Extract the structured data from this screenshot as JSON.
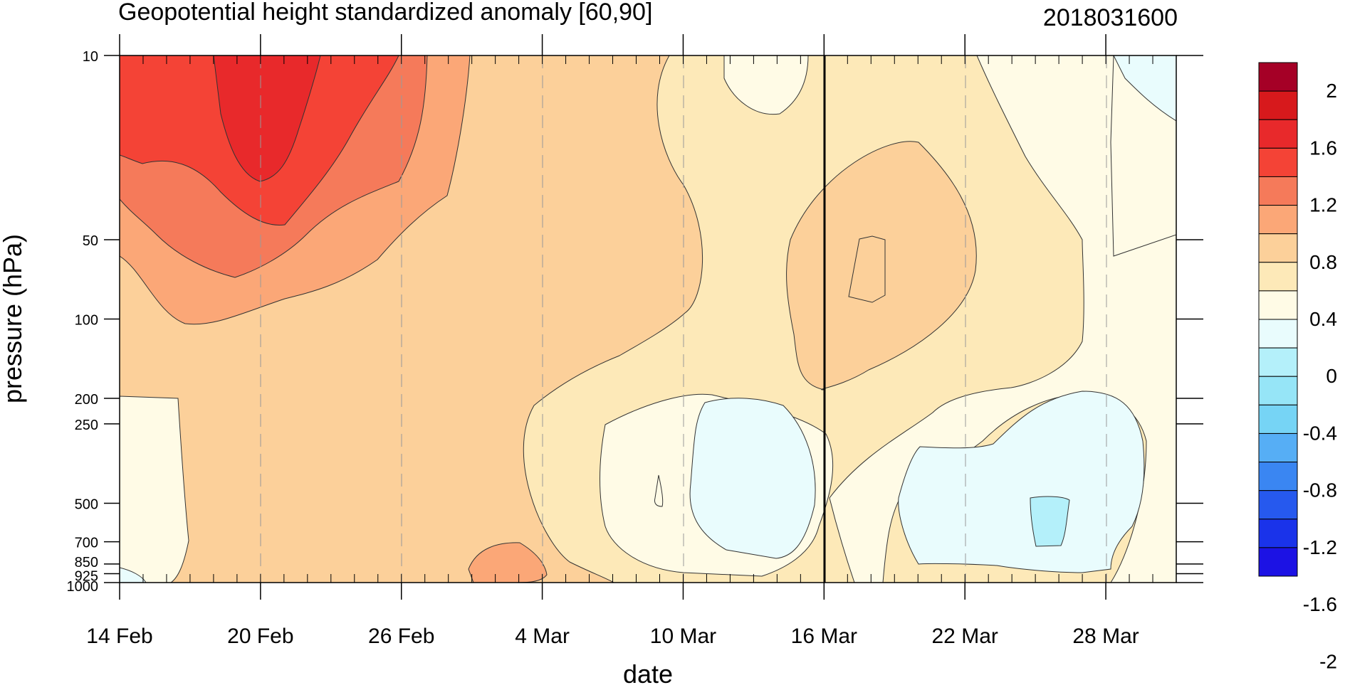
{
  "chart_data": {
    "type": "heatmap",
    "title": "Geopotential height standardized anomaly [60,90]",
    "stamp": "2018031600",
    "xlabel": "date",
    "ylabel": "pressure (hPa)",
    "x_range": [
      "2018-02-14",
      "2018-03-31"
    ],
    "x_ticks": [
      {
        "date": "2018-02-14",
        "label": "14 Feb"
      },
      {
        "date": "2018-02-20",
        "label": "20 Feb"
      },
      {
        "date": "2018-02-26",
        "label": "26 Feb"
      },
      {
        "date": "2018-03-04",
        "label": "4 Mar"
      },
      {
        "date": "2018-03-10",
        "label": "10 Mar"
      },
      {
        "date": "2018-03-16",
        "label": "16 Mar"
      },
      {
        "date": "2018-03-22",
        "label": "22 Mar"
      },
      {
        "date": "2018-03-28",
        "label": "28 Mar"
      }
    ],
    "y_scale": "log",
    "y_range": [
      1000,
      10
    ],
    "y_ticks": [
      {
        "p": 10,
        "label": "10"
      },
      {
        "p": 50,
        "label": "50"
      },
      {
        "p": 100,
        "label": "100"
      },
      {
        "p": 200,
        "label": "200"
      },
      {
        "p": 250,
        "label": "250"
      },
      {
        "p": 500,
        "label": "500"
      },
      {
        "p": 700,
        "label": "700"
      },
      {
        "p": 850,
        "label": "850"
      },
      {
        "p": 925,
        "label": "925"
      },
      {
        "p": 1000,
        "label": "1000"
      }
    ],
    "reference_line_date": "2018-03-16",
    "colorbar": {
      "labels": [
        "2",
        "1.6",
        "1.2",
        "0.8",
        "0.4",
        "0",
        "-0.4",
        "-0.8",
        "-1.2",
        "-1.6",
        "-2"
      ],
      "colors": [
        "#a50026",
        "#d7191c",
        "#e8292b",
        "#f44336",
        "#f57a5a",
        "#fba777",
        "#fcd09a",
        "#fde9b8",
        "#fffbe6",
        "#e9fcfd",
        "#b4f0fa",
        "#96e5f7",
        "#76d4f5",
        "#56aef5",
        "#3a86f2",
        "#2659ee",
        "#1a33ea",
        "#1c12e4"
      ]
    },
    "regions": [
      {
        "name": "positive-anomaly-1.2-to-1.6",
        "value_range": [
          1.2,
          1.6
        ],
        "color": "#f44336"
      },
      {
        "name": "positive-anomaly-1.6-to-2",
        "value_range": [
          1.6,
          2.0
        ],
        "color": "#e8292b"
      },
      {
        "name": "negative-anomaly-0-to-minus-0.2",
        "value_range": [
          -0.2,
          0
        ],
        "color": "#e9fcfd"
      },
      {
        "name": "negative-anomaly-minus-0.2-to-minus-0.4",
        "value_range": [
          -0.4,
          -0.2
        ],
        "color": "#b4f0fa"
      }
    ]
  }
}
